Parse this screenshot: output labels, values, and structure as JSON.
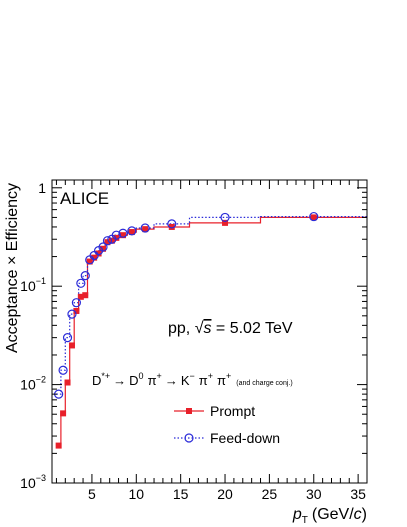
{
  "chart_data": {
    "type": "step",
    "experiment_label": "ALICE",
    "system_prefix": "pp, ",
    "sqrt_s": "s",
    "energy_text": " = 5.02 TeV",
    "decay_chain": {
      "d_star": "D",
      "d_star_sup": "*+",
      "arrow1": "→",
      "d0": "D",
      "d0_sup": "0",
      "pi1": "π",
      "pi1_sup": "+",
      "arrow2": "→",
      "k": "K",
      "k_sup": "−",
      "pi2": "π",
      "pi2_sup": "+",
      "pi3": "π",
      "pi3_sup": "+",
      "note": "(and charge conj.)"
    },
    "xlabel_var": "p",
    "xlabel_sub": "T",
    "xlabel_unit_open": "(GeV/",
    "xlabel_unit_c": "c",
    "xlabel_unit_close": ")",
    "ylabel": "Acceptance × Efficiency",
    "x_range": [
      0.5,
      36
    ],
    "y_range": [
      0.001,
      1.2
    ],
    "y_scale": "log",
    "x_ticks": [
      5,
      10,
      15,
      20,
      25,
      30,
      35
    ],
    "y_ticks": [
      {
        "value": 0.001,
        "base": "10",
        "exp": "−3"
      },
      {
        "value": 0.01,
        "base": "10",
        "exp": "−2"
      },
      {
        "value": 0.1,
        "base": "10",
        "exp": "−1"
      },
      {
        "value": 1,
        "base": "1",
        "exp": ""
      }
    ],
    "bin_edges": [
      1,
      1.5,
      2,
      2.5,
      3,
      3.5,
      4,
      4.5,
      5,
      5.5,
      6,
      6.5,
      7,
      7.5,
      8,
      9,
      10,
      12,
      16,
      24,
      36
    ],
    "series": [
      {
        "name": "Prompt",
        "color": "#e8202a",
        "line": "solid",
        "marker": "square",
        "values": [
          0.0024,
          0.0051,
          0.0105,
          0.025,
          0.056,
          0.078,
          0.081,
          0.178,
          0.195,
          0.215,
          0.24,
          0.28,
          0.29,
          0.31,
          0.33,
          0.355,
          0.38,
          0.4,
          0.44,
          0.5
        ]
      },
      {
        "name": "Feed-down",
        "color": "#2b2bd8",
        "line": "dotted",
        "marker": "open-circle",
        "values": [
          0.008,
          0.014,
          0.03,
          0.052,
          0.068,
          0.107,
          0.128,
          0.185,
          0.205,
          0.23,
          0.25,
          0.29,
          0.3,
          0.33,
          0.345,
          0.365,
          0.39,
          0.43,
          0.5,
          0.51
        ]
      }
    ],
    "legend_placement": "bottom-center",
    "grid": false
  }
}
